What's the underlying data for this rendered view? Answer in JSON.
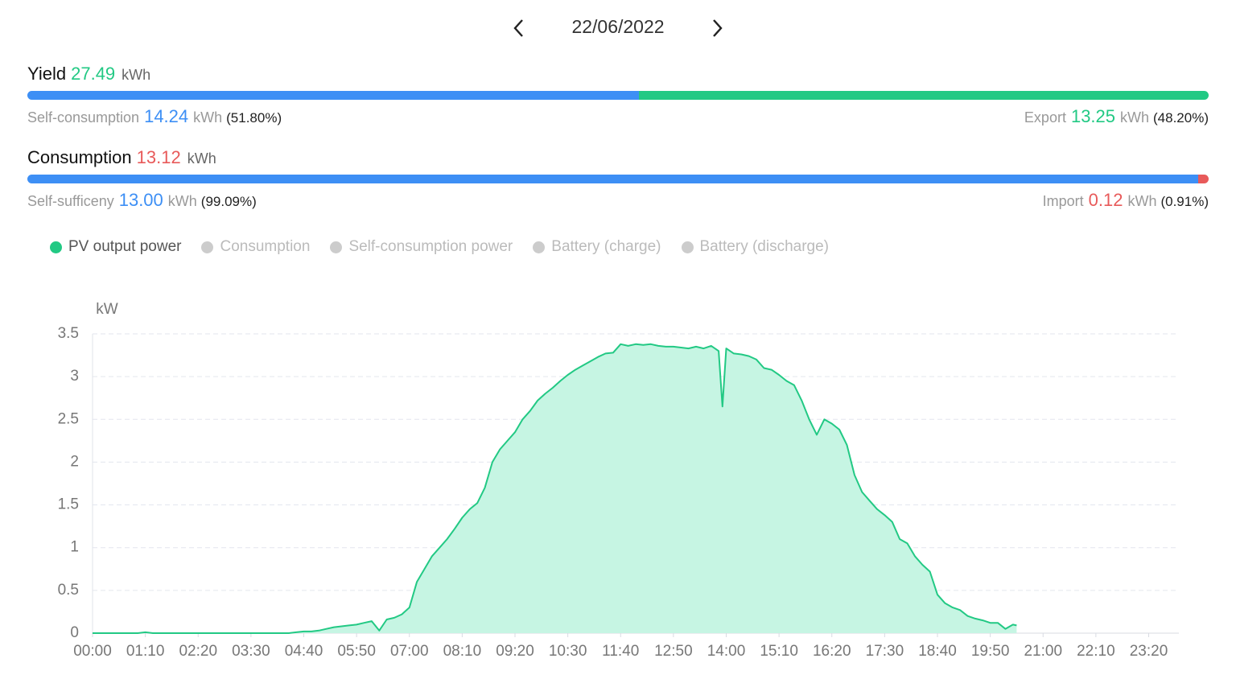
{
  "header": {
    "date": "22/06/2022"
  },
  "yield": {
    "label": "Yield",
    "value": "27.49",
    "unit": "kWh",
    "left": {
      "label": "Self-consumption",
      "value": "14.24",
      "unit": "kWh",
      "share": {
        "value": 51.8,
        "label": "(51.80%)"
      },
      "color": "#3d8ff5"
    },
    "right": {
      "label": "Export",
      "value": "13.25",
      "unit": "kWh",
      "share": {
        "value": 48.2,
        "label": "(48.20%)"
      },
      "color": "#22c984"
    }
  },
  "consumption": {
    "label": "Consumption",
    "value": "13.12",
    "unit": "kWh",
    "left": {
      "label": "Self-sufficeny",
      "value": "13.00",
      "unit": "kWh",
      "share": {
        "value": 99.09,
        "label": "(99.09%)"
      },
      "color": "#3d8ff5"
    },
    "right": {
      "label": "Import",
      "value": "0.12",
      "unit": "kWh",
      "share": {
        "value": 0.91,
        "label": "(0.91%)"
      },
      "color": "#e85a5a"
    }
  },
  "legend": [
    {
      "name": "PV output power",
      "color": "#22c984"
    },
    {
      "name": "Consumption",
      "color": "#cccccc"
    },
    {
      "name": "Self-consumption power",
      "color": "#cccccc"
    },
    {
      "name": "Battery (charge)",
      "color": "#cccccc"
    },
    {
      "name": "Battery (discharge)",
      "color": "#cccccc"
    }
  ],
  "chart_data": {
    "type": "area",
    "y_label": "kW",
    "x": [
      0,
      10,
      20,
      30,
      40,
      50,
      60,
      70,
      80,
      90,
      100,
      110,
      120,
      130,
      140,
      150,
      160,
      170,
      180,
      190,
      200,
      210,
      220,
      230,
      240,
      250,
      260,
      270,
      280,
      290,
      300,
      310,
      320,
      330,
      340,
      350,
      360,
      370,
      380,
      390,
      400,
      410,
      420,
      430,
      440,
      450,
      460,
      470,
      480,
      490,
      500,
      510,
      520,
      530,
      540,
      550,
      560,
      570,
      580,
      590,
      600,
      610,
      620,
      630,
      640,
      650,
      660,
      670,
      680,
      690,
      700,
      710,
      720,
      730,
      740,
      750,
      760,
      770,
      780,
      790,
      800,
      810,
      820,
      830,
      835,
      840,
      850,
      860,
      870,
      880,
      890,
      900,
      910,
      920,
      930,
      940,
      950,
      960,
      970,
      980,
      990,
      1000,
      1010,
      1020,
      1030,
      1040,
      1050,
      1060,
      1070,
      1080,
      1090,
      1100,
      1110,
      1120,
      1130,
      1140,
      1150,
      1160,
      1170,
      1180,
      1190,
      1200,
      1210,
      1220,
      1225
    ],
    "series": [
      {
        "name": "PV output power",
        "color": "#22c984",
        "fill": "#c6f5e3",
        "values": [
          0,
          0,
          0,
          0,
          0,
          0,
          0,
          0.01,
          0,
          0,
          0,
          0,
          0,
          0,
          0,
          0,
          0,
          0,
          0,
          0,
          0,
          0,
          0,
          0,
          0,
          0,
          0,
          0.01,
          0.02,
          0.02,
          0.03,
          0.05,
          0.07,
          0.08,
          0.09,
          0.1,
          0.12,
          0.14,
          0.03,
          0.16,
          0.18,
          0.22,
          0.3,
          0.6,
          0.75,
          0.9,
          1.0,
          1.1,
          1.22,
          1.35,
          1.45,
          1.52,
          1.7,
          2.0,
          2.15,
          2.25,
          2.35,
          2.5,
          2.6,
          2.72,
          2.8,
          2.87,
          2.95,
          3.02,
          3.08,
          3.13,
          3.18,
          3.23,
          3.27,
          3.28,
          3.38,
          3.36,
          3.38,
          3.37,
          3.38,
          3.36,
          3.35,
          3.35,
          3.34,
          3.33,
          3.35,
          3.33,
          3.36,
          3.3,
          2.65,
          3.33,
          3.27,
          3.26,
          3.24,
          3.2,
          3.1,
          3.08,
          3.02,
          2.95,
          2.9,
          2.72,
          2.5,
          2.32,
          2.5,
          2.45,
          2.38,
          2.2,
          1.85,
          1.65,
          1.55,
          1.45,
          1.38,
          1.3,
          1.1,
          1.05,
          0.9,
          0.8,
          0.72,
          0.45,
          0.35,
          0.3,
          0.27,
          0.2,
          0.17,
          0.15,
          0.12,
          0.12,
          0.05,
          0.1,
          0.09
        ]
      }
    ],
    "xlim": [
      0,
      1440
    ],
    "xticks": [
      {
        "value": 0,
        "label": "00:00"
      },
      {
        "value": 70,
        "label": "01:10"
      },
      {
        "value": 140,
        "label": "02:20"
      },
      {
        "value": 210,
        "label": "03:30"
      },
      {
        "value": 280,
        "label": "04:40"
      },
      {
        "value": 350,
        "label": "05:50"
      },
      {
        "value": 420,
        "label": "07:00"
      },
      {
        "value": 490,
        "label": "08:10"
      },
      {
        "value": 560,
        "label": "09:20"
      },
      {
        "value": 630,
        "label": "10:30"
      },
      {
        "value": 700,
        "label": "11:40"
      },
      {
        "value": 770,
        "label": "12:50"
      },
      {
        "value": 840,
        "label": "14:00"
      },
      {
        "value": 910,
        "label": "15:10"
      },
      {
        "value": 980,
        "label": "16:20"
      },
      {
        "value": 1050,
        "label": "17:30"
      },
      {
        "value": 1120,
        "label": "18:40"
      },
      {
        "value": 1190,
        "label": "19:50"
      },
      {
        "value": 1260,
        "label": "21:00"
      },
      {
        "value": 1330,
        "label": "22:10"
      },
      {
        "value": 1400,
        "label": "23:20"
      }
    ],
    "ylim": [
      0,
      3.5
    ],
    "yticks": [
      0,
      0.5,
      1,
      1.5,
      2,
      2.5,
      3,
      3.5
    ],
    "grid": true
  }
}
